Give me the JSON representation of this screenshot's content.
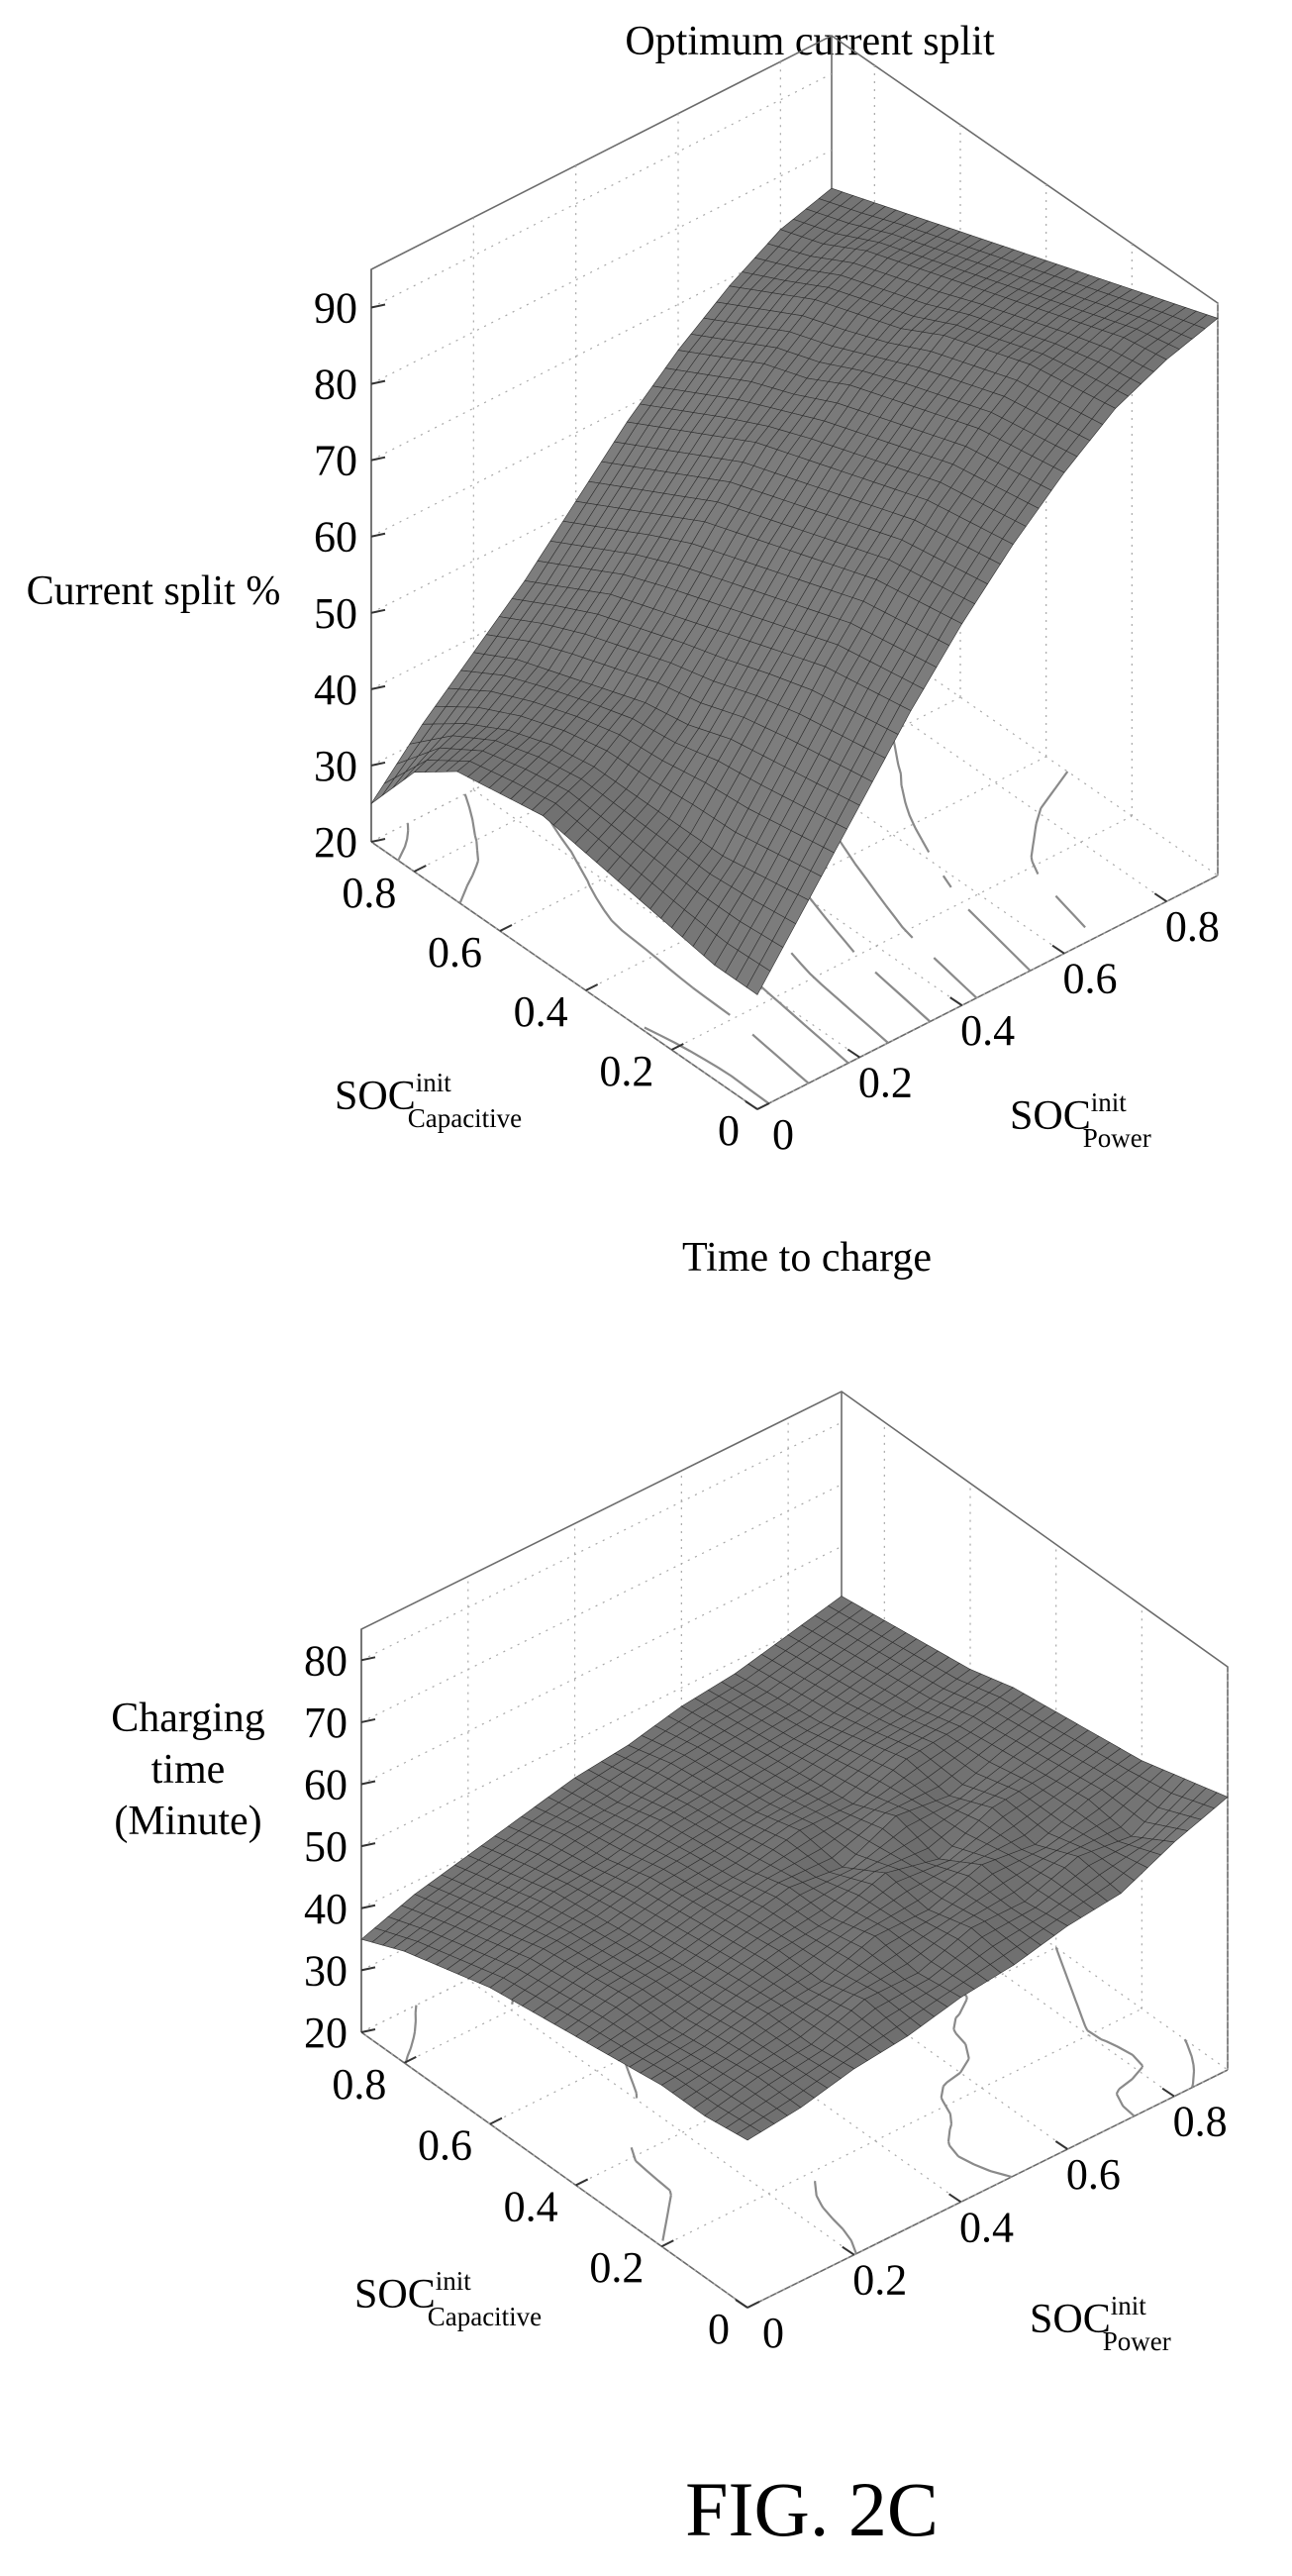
{
  "figure": {
    "caption": "FIG. 2C"
  },
  "chart_data": [
    {
      "type": "surface",
      "title": "Optimum current split",
      "zlabel": "Current split %",
      "xlabel": {
        "base": "SOC",
        "sup": "init",
        "sub": "Power"
      },
      "ylabel": {
        "base": "SOC",
        "sup": "init",
        "sub": "Capacitive"
      },
      "x_range": [
        0,
        0.9
      ],
      "y_range": [
        0,
        0.9
      ],
      "zlim": [
        20,
        95
      ],
      "x_ticks": [
        "0",
        "0.2",
        "0.4",
        "0.6",
        "0.8"
      ],
      "y_ticks": [
        "0",
        "0.2",
        "0.4",
        "0.6",
        "0.8"
      ],
      "z_ticks": [
        "20",
        "30",
        "40",
        "50",
        "60",
        "70",
        "80",
        "90"
      ],
      "grid": true,
      "contour_projection": true,
      "x": [
        0,
        0.1,
        0.2,
        0.3,
        0.4,
        0.5,
        0.6,
        0.7,
        0.8,
        0.9
      ],
      "y": [
        0,
        0.1,
        0.2,
        0.3,
        0.4,
        0.5,
        0.6,
        0.7,
        0.8,
        0.9
      ],
      "z": [
        [
          35,
          44,
          53,
          62,
          70,
          77,
          83,
          88,
          91,
          93
        ],
        [
          35,
          43,
          52,
          61,
          69,
          76,
          82,
          87,
          90,
          91
        ],
        [
          36,
          42,
          51,
          60,
          68,
          75,
          81,
          86,
          88,
          89
        ],
        [
          37,
          42,
          50,
          58,
          66,
          73,
          79,
          84,
          86,
          87
        ],
        [
          38,
          42,
          48,
          56,
          64,
          71,
          77,
          82,
          84,
          85
        ],
        [
          39,
          42,
          47,
          54,
          62,
          69,
          75,
          79,
          82,
          83
        ],
        [
          38,
          41,
          45,
          52,
          60,
          67,
          72,
          77,
          80,
          81
        ],
        [
          37,
          39,
          43,
          50,
          57,
          64,
          70,
          75,
          78,
          79
        ],
        [
          33,
          36,
          41,
          47,
          54,
          61,
          67,
          72,
          75,
          77
        ],
        [
          25,
          32,
          38,
          44,
          51,
          58,
          64,
          69,
          73,
          75
        ]
      ]
    },
    {
      "type": "surface",
      "title": "Time to charge",
      "zlabel": [
        "Charging",
        "time",
        "(Minute)"
      ],
      "xlabel": {
        "base": "SOC",
        "sup": "init",
        "sub": "Power"
      },
      "ylabel": {
        "base": "SOC",
        "sup": "init",
        "sub": "Capacitive"
      },
      "x_range": [
        0,
        0.9
      ],
      "y_range": [
        0,
        0.9
      ],
      "zlim": [
        20,
        85
      ],
      "x_ticks": [
        "0",
        "0.2",
        "0.4",
        "0.6",
        "0.8"
      ],
      "y_ticks": [
        "0",
        "0.2",
        "0.4",
        "0.6",
        "0.8"
      ],
      "z_ticks": [
        "20",
        "30",
        "40",
        "50",
        "60",
        "70",
        "80"
      ],
      "grid": true,
      "contour_projection": true,
      "x": [
        0,
        0.1,
        0.2,
        0.3,
        0.4,
        0.5,
        0.6,
        0.7,
        0.8,
        0.9
      ],
      "y": [
        0,
        0.1,
        0.2,
        0.3,
        0.4,
        0.5,
        0.6,
        0.7,
        0.8,
        0.9
      ],
      "z": [
        [
          47,
          48,
          50,
          51,
          53,
          54,
          56,
          57,
          61,
          64
        ],
        [
          46,
          48,
          49,
          52,
          52,
          55,
          55,
          58,
          57,
          62
        ],
        [
          46,
          47,
          49,
          50,
          53,
          53,
          56,
          55,
          58,
          60
        ],
        [
          45,
          46,
          48,
          50,
          51,
          54,
          52,
          56,
          57,
          59
        ],
        [
          44,
          46,
          47,
          49,
          51,
          50,
          54,
          53,
          56,
          58
        ],
        [
          43,
          45,
          46,
          48,
          49,
          51,
          51,
          54,
          55,
          57
        ],
        [
          42,
          44,
          45,
          47,
          48,
          49,
          50,
          52,
          53,
          55
        ],
        [
          40,
          42,
          44,
          45,
          47,
          48,
          49,
          50,
          52,
          54
        ],
        [
          38,
          40,
          42,
          44,
          45,
          47,
          48,
          49,
          51,
          53
        ],
        [
          35,
          38,
          40,
          42,
          44,
          45,
          47,
          48,
          50,
          52
        ]
      ]
    }
  ]
}
